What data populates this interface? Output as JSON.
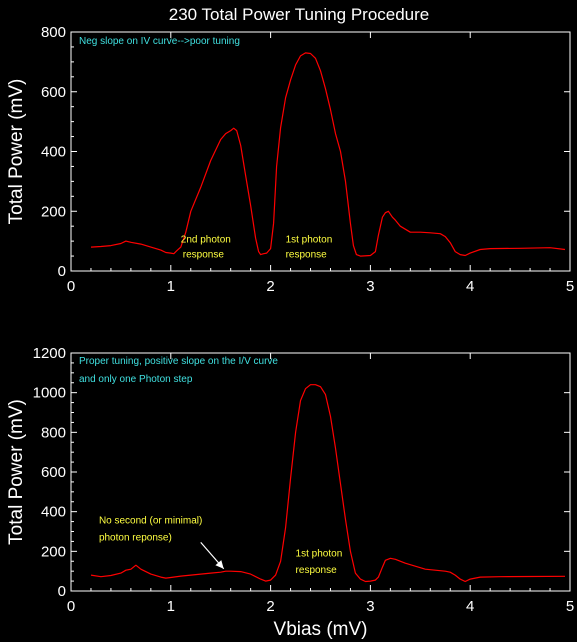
{
  "figure": {
    "title": "230 Total Power Tuning Procedure",
    "colors": {
      "background": "#000000",
      "axes": "#ffffff",
      "line": "#ff0000",
      "note_cyan": "#40e0e0",
      "note_yellow": "#ffff40"
    }
  },
  "chart_data": [
    {
      "type": "line",
      "title": "230 Total Power Tuning Procedure",
      "ylabel": "Total Power (mV)",
      "xlabel": "",
      "xlim": [
        0,
        5
      ],
      "ylim": [
        0,
        800
      ],
      "xticks": [
        "0",
        "1",
        "2",
        "3",
        "4",
        "5"
      ],
      "yticks": [
        "0",
        "200",
        "400",
        "600",
        "800"
      ],
      "grid": false,
      "series": [
        {
          "x": [
            0.2,
            0.3,
            0.4,
            0.5,
            0.55,
            0.6,
            0.7,
            0.8,
            0.9,
            0.95,
            1.0,
            1.03,
            1.06,
            1.1,
            1.15,
            1.2,
            1.3,
            1.4,
            1.5,
            1.55,
            1.6,
            1.63,
            1.66,
            1.7,
            1.75,
            1.8,
            1.85,
            1.88,
            1.9,
            1.93,
            1.96,
            2.0,
            2.03,
            2.06,
            2.1,
            2.15,
            2.2,
            2.25,
            2.3,
            2.35,
            2.4,
            2.45,
            2.5,
            2.55,
            2.6,
            2.65,
            2.7,
            2.75,
            2.8,
            2.83,
            2.86,
            2.9,
            3.0,
            3.05,
            3.08,
            3.12,
            3.15,
            3.18,
            3.22,
            3.25,
            3.3,
            3.4,
            3.45,
            3.5,
            3.6,
            3.7,
            3.75,
            3.8,
            3.85,
            3.9,
            3.95,
            4.0,
            4.1,
            4.2,
            4.5,
            4.8,
            4.95
          ],
          "values": [
            80,
            82,
            85,
            92,
            100,
            96,
            90,
            80,
            70,
            62,
            60,
            58,
            68,
            80,
            130,
            200,
            280,
            370,
            440,
            460,
            470,
            478,
            470,
            420,
            320,
            220,
            110,
            65,
            55,
            58,
            60,
            75,
            160,
            350,
            480,
            580,
            640,
            690,
            720,
            730,
            728,
            712,
            670,
            610,
            540,
            460,
            400,
            300,
            160,
            85,
            55,
            50,
            52,
            65,
            120,
            180,
            195,
            200,
            180,
            170,
            150,
            130,
            130,
            130,
            128,
            125,
            115,
            95,
            65,
            55,
            52,
            60,
            72,
            75,
            76,
            78,
            72
          ]
        }
      ],
      "annotations": [
        {
          "text": "Neg slope on IV curve-->poor tuning",
          "x": 0.08,
          "y": 760,
          "color": "#40e0e0"
        },
        {
          "text": "2nd photon",
          "x": 1.1,
          "y": 95,
          "color": "#ffff40"
        },
        {
          "text": "response",
          "x": 1.12,
          "y": 45,
          "color": "#ffff40"
        },
        {
          "text": "1st photon",
          "x": 2.15,
          "y": 95,
          "color": "#ffff40"
        },
        {
          "text": "response",
          "x": 2.15,
          "y": 45,
          "color": "#ffff40"
        }
      ]
    },
    {
      "type": "line",
      "title": "",
      "ylabel": "Total Power (mV)",
      "xlabel": "Vbias (mV)",
      "xlim": [
        0,
        5
      ],
      "ylim": [
        0,
        1200
      ],
      "xticks": [
        "0",
        "1",
        "2",
        "3",
        "4",
        "5"
      ],
      "yticks": [
        "0",
        "200",
        "400",
        "600",
        "800",
        "1000",
        "1200"
      ],
      "grid": false,
      "series": [
        {
          "x": [
            0.2,
            0.3,
            0.4,
            0.5,
            0.55,
            0.6,
            0.65,
            0.7,
            0.8,
            0.9,
            0.95,
            1.0,
            1.1,
            1.2,
            1.3,
            1.4,
            1.5,
            1.55,
            1.6,
            1.7,
            1.8,
            1.9,
            1.95,
            2.0,
            2.05,
            2.1,
            2.15,
            2.2,
            2.25,
            2.3,
            2.35,
            2.4,
            2.45,
            2.5,
            2.55,
            2.6,
            2.65,
            2.7,
            2.75,
            2.8,
            2.85,
            2.9,
            2.95,
            3.0,
            3.05,
            3.08,
            3.12,
            3.15,
            3.2,
            3.25,
            3.35,
            3.45,
            3.55,
            3.65,
            3.75,
            3.8,
            3.85,
            3.9,
            3.95,
            4.0,
            4.1,
            4.3,
            4.6,
            4.95
          ],
          "values": [
            80,
            72,
            78,
            90,
            105,
            110,
            130,
            110,
            85,
            70,
            65,
            68,
            75,
            80,
            85,
            90,
            95,
            100,
            100,
            98,
            85,
            60,
            50,
            55,
            80,
            150,
            320,
            570,
            800,
            960,
            1020,
            1040,
            1040,
            1030,
            990,
            880,
            720,
            540,
            360,
            200,
            90,
            60,
            48,
            50,
            55,
            70,
            120,
            155,
            165,
            160,
            140,
            125,
            110,
            105,
            100,
            95,
            80,
            60,
            48,
            60,
            70,
            72,
            73,
            74
          ]
        }
      ],
      "annotations": [
        {
          "text": "Proper tuning, positive slope on the I/V curve",
          "x": 0.08,
          "y": 1145,
          "color": "#40e0e0"
        },
        {
          "text": "and only one Photon step",
          "x": 0.08,
          "y": 1055,
          "color": "#40e0e0"
        },
        {
          "text": "No second (or minimal)",
          "x": 0.28,
          "y": 340,
          "color": "#ffff40"
        },
        {
          "text": "photon reponse)",
          "x": 0.28,
          "y": 255,
          "color": "#ffff40"
        },
        {
          "text": "1st photon",
          "x": 2.25,
          "y": 175,
          "color": "#ffff40"
        },
        {
          "text": "response",
          "x": 2.25,
          "y": 90,
          "color": "#ffff40"
        }
      ],
      "arrows": [
        {
          "from": [
            1.3,
            245
          ],
          "to": [
            1.53,
            112
          ],
          "color": "#ffffff"
        }
      ]
    }
  ]
}
